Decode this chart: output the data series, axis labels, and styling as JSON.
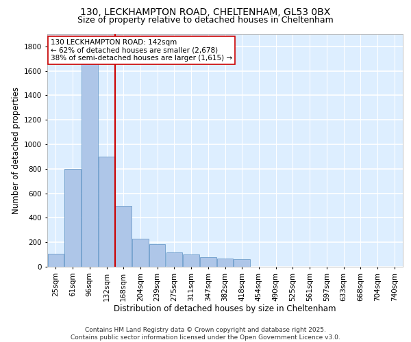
{
  "title_line1": "130, LECKHAMPTON ROAD, CHELTENHAM, GL53 0BX",
  "title_line2": "Size of property relative to detached houses in Cheltenham",
  "xlabel": "Distribution of detached houses by size in Cheltenham",
  "ylabel": "Number of detached properties",
  "categories": [
    "25sqm",
    "61sqm",
    "96sqm",
    "132sqm",
    "168sqm",
    "204sqm",
    "239sqm",
    "275sqm",
    "311sqm",
    "347sqm",
    "382sqm",
    "418sqm",
    "454sqm",
    "490sqm",
    "525sqm",
    "561sqm",
    "597sqm",
    "633sqm",
    "668sqm",
    "704sqm",
    "740sqm"
  ],
  "values": [
    105,
    800,
    1700,
    900,
    500,
    230,
    185,
    120,
    100,
    80,
    65,
    60,
    0,
    0,
    0,
    0,
    0,
    0,
    0,
    0,
    0
  ],
  "bar_color": "#aec6e8",
  "bar_edge_color": "#5a8fc2",
  "vline_x": 3.5,
  "vline_color": "#cc0000",
  "annotation_text": "130 LECKHAMPTON ROAD: 142sqm\n← 62% of detached houses are smaller (2,678)\n38% of semi-detached houses are larger (1,615) →",
  "annotation_box_color": "#ffffff",
  "annotation_box_edge": "#cc0000",
  "ylim": [
    0,
    1900
  ],
  "yticks": [
    0,
    200,
    400,
    600,
    800,
    1000,
    1200,
    1400,
    1600,
    1800
  ],
  "footer": "Contains HM Land Registry data © Crown copyright and database right 2025.\nContains public sector information licensed under the Open Government Licence v3.0.",
  "bg_color": "#ddeeff",
  "grid_color": "#ffffff",
  "title_fontsize": 10,
  "label_fontsize": 8.5,
  "tick_fontsize": 7.5,
  "footer_fontsize": 6.5
}
